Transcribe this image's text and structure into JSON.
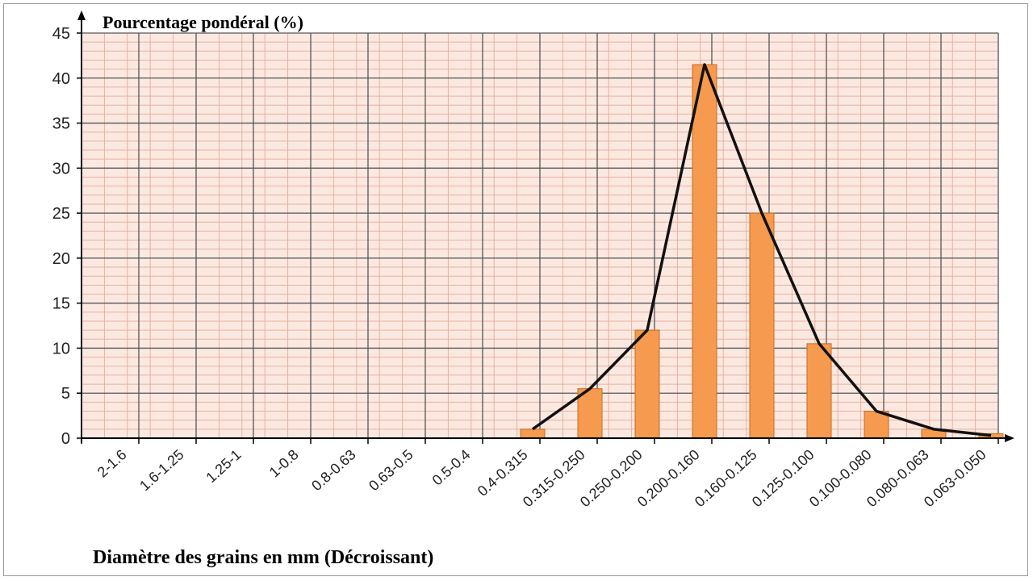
{
  "chart_data": {
    "type": "bar",
    "ylabel": "Pourcentage pondéral (%)",
    "xlabel": "Diamètre des grains en mm (Décroissant)",
    "ylim": [
      0,
      45
    ],
    "y_ticks": [
      "0",
      "5",
      "10",
      "15",
      "20",
      "25",
      "30",
      "35",
      "40",
      "45"
    ],
    "categories": [
      "2-1.6",
      "1.6-1.25",
      "1.25-1",
      "1-0.8",
      "0.8-0.63",
      "0.63-0.5",
      "0.5-0.4",
      "0.4-0.315",
      "0.315-0.250",
      "0.250-0.200",
      "0.200-0.160",
      "0.160-0.125",
      "0.125-0.100",
      "0.100-0.080",
      "0.080-0.063",
      "0.063-0.050"
    ],
    "values": [
      0,
      0,
      0,
      0,
      0,
      0,
      0,
      1,
      5.5,
      12,
      41.5,
      25,
      10.5,
      3,
      1,
      0.5
    ],
    "line_values": [
      null,
      null,
      null,
      null,
      null,
      null,
      null,
      1,
      5.5,
      12,
      41.5,
      25,
      10.5,
      3,
      1,
      0.3
    ],
    "grid": true,
    "legend": "none",
    "colors": {
      "bar": "#f59a4e",
      "bar_edge": "#c96a22",
      "line": "#111111",
      "plot_bg": "#fbe9e1",
      "grid_minor": "#e8b0a0",
      "grid_major": "#555555"
    }
  }
}
